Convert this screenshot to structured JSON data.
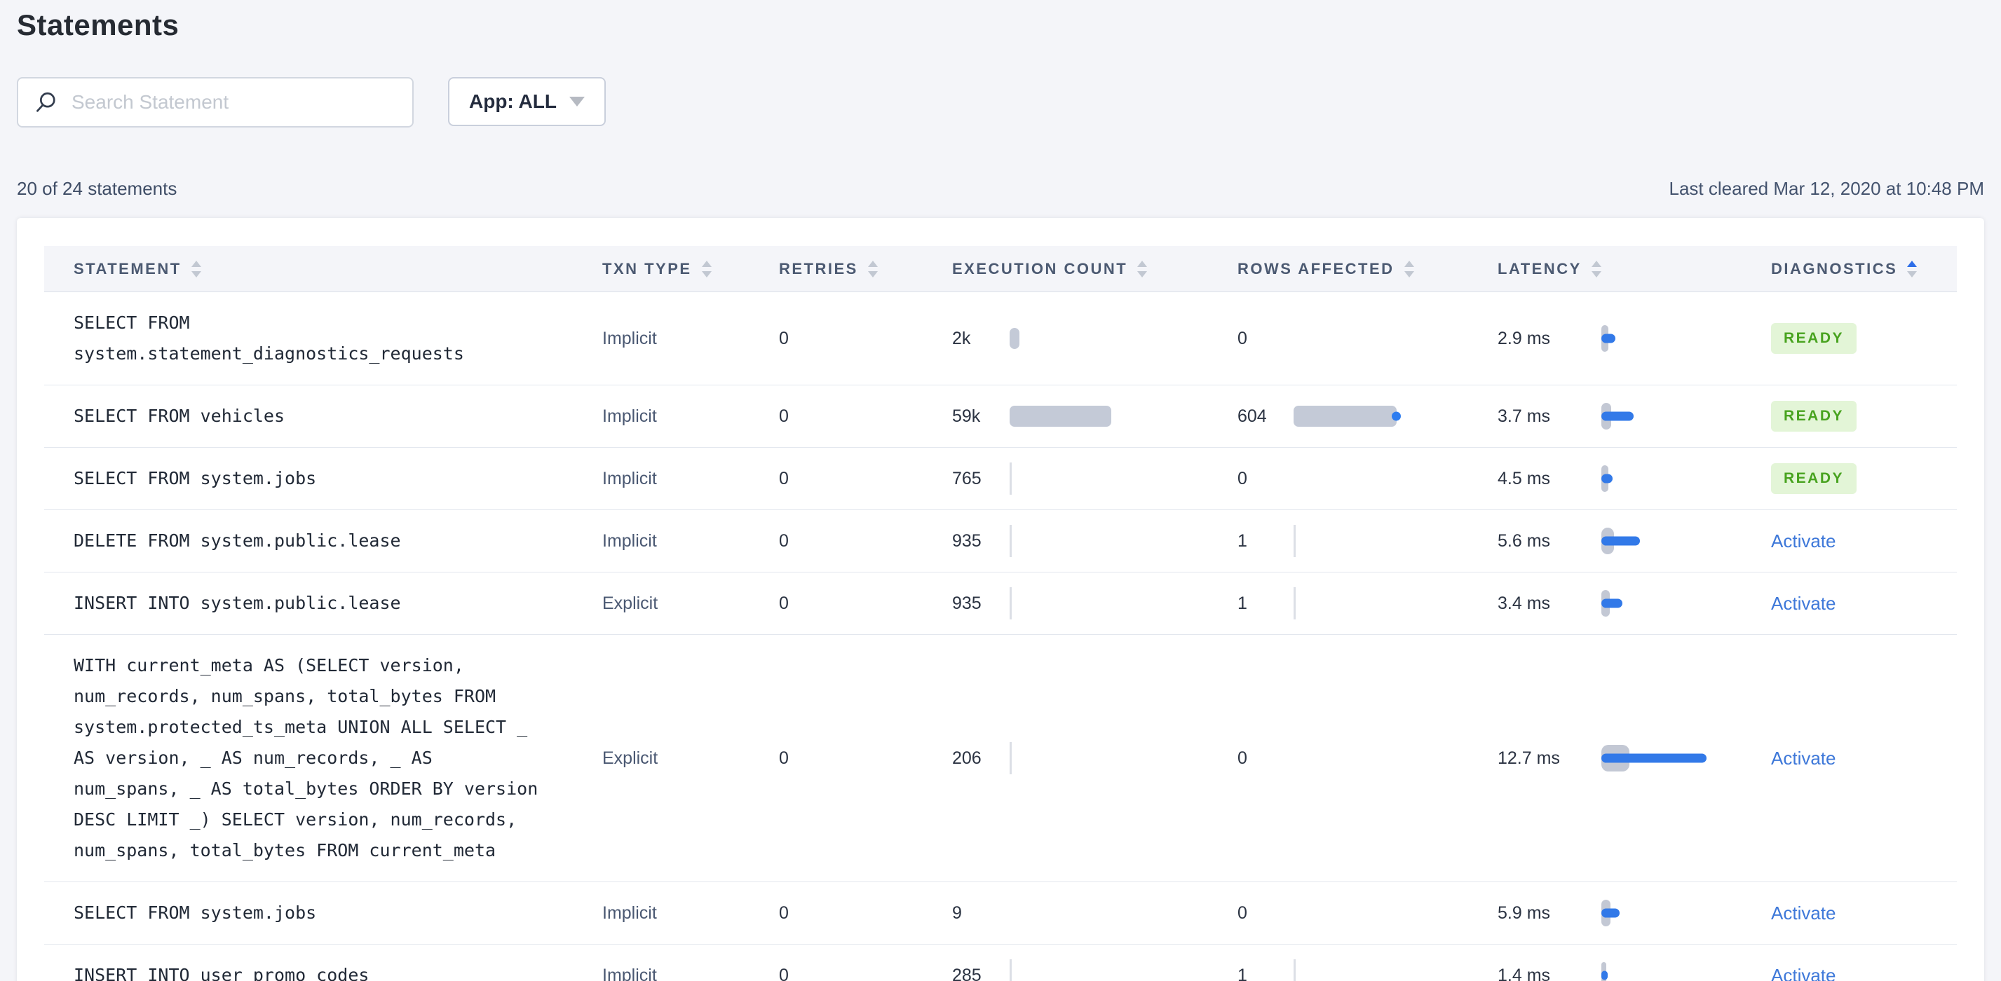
{
  "colors": {
    "accent_blue": "#3279e8",
    "link_blue": "#3e78d9",
    "bar_gray": "#c4cad7",
    "latency_gray": "#c3c8d4",
    "badge_green_bg": "#e3f5d7",
    "badge_green_text": "#48a31f",
    "active_sort_arrow": "#2e6ee8"
  },
  "page": {
    "title": "Statements",
    "search_placeholder": "Search Statement",
    "app_filter_label": "App: ALL",
    "summary": "20 of 24 statements",
    "last_cleared": "Last cleared Mar 12, 2020 at 10:48 PM"
  },
  "table": {
    "columns": [
      {
        "label": "STATEMENT",
        "sort": "none"
      },
      {
        "label": "TXN TYPE",
        "sort": "none"
      },
      {
        "label": "RETRIES",
        "sort": "none"
      },
      {
        "label": "EXECUTION COUNT",
        "sort": "none"
      },
      {
        "label": "ROWS AFFECTED",
        "sort": "none"
      },
      {
        "label": "LATENCY",
        "sort": "none"
      },
      {
        "label": "DIAGNOSTICS",
        "sort": "asc"
      }
    ],
    "rows": [
      {
        "statement": "SELECT FROM system.statement_diagnostics_requests",
        "txn_type": "Implicit",
        "retries": "0",
        "execution_count": "2k",
        "exec_bar": {
          "style": "bar",
          "width": 14,
          "dot": false
        },
        "rows_affected": "0",
        "rows_bar": {
          "style": "none",
          "width": 0,
          "dot": false
        },
        "latency": "2.9 ms",
        "latency_bar": {
          "gray": 10,
          "blue": 20
        },
        "diagnostics": {
          "type": "badge",
          "label": "READY"
        }
      },
      {
        "statement": "SELECT FROM vehicles",
        "txn_type": "Implicit",
        "retries": "0",
        "execution_count": "59k",
        "exec_bar": {
          "style": "bar",
          "width": 145,
          "dot": false
        },
        "rows_affected": "604",
        "rows_bar": {
          "style": "bar",
          "width": 147,
          "dot": true
        },
        "latency": "3.7 ms",
        "latency_bar": {
          "gray": 14,
          "blue": 46
        },
        "diagnostics": {
          "type": "badge",
          "label": "READY"
        }
      },
      {
        "statement": "SELECT FROM system.jobs",
        "txn_type": "Implicit",
        "retries": "0",
        "execution_count": "765",
        "exec_bar": {
          "style": "line",
          "width": 3,
          "dot": false
        },
        "rows_affected": "0",
        "rows_bar": {
          "style": "none",
          "width": 0,
          "dot": false
        },
        "latency": "4.5 ms",
        "latency_bar": {
          "gray": 10,
          "blue": 16
        },
        "diagnostics": {
          "type": "badge",
          "label": "READY"
        }
      },
      {
        "statement": "DELETE FROM system.public.lease",
        "txn_type": "Implicit",
        "retries": "0",
        "execution_count": "935",
        "exec_bar": {
          "style": "line",
          "width": 3,
          "dot": false
        },
        "rows_affected": "1",
        "rows_bar": {
          "style": "line",
          "width": 3,
          "dot": false
        },
        "latency": "5.6 ms",
        "latency_bar": {
          "gray": 18,
          "blue": 55
        },
        "diagnostics": {
          "type": "link",
          "label": "Activate"
        }
      },
      {
        "statement": "INSERT INTO system.public.lease",
        "txn_type": "Explicit",
        "retries": "0",
        "execution_count": "935",
        "exec_bar": {
          "style": "line",
          "width": 3,
          "dot": false
        },
        "rows_affected": "1",
        "rows_bar": {
          "style": "line",
          "width": 3,
          "dot": false
        },
        "latency": "3.4 ms",
        "latency_bar": {
          "gray": 12,
          "blue": 30
        },
        "diagnostics": {
          "type": "link",
          "label": "Activate"
        }
      },
      {
        "statement": "WITH current_meta AS (SELECT version, num_records, num_spans, total_bytes FROM system.protected_ts_meta UNION ALL SELECT _ AS version, _ AS num_records, _ AS num_spans, _ AS total_bytes ORDER BY version DESC LIMIT _) SELECT version, num_records, num_spans, total_bytes FROM current_meta",
        "txn_type": "Explicit",
        "retries": "0",
        "execution_count": "206",
        "exec_bar": {
          "style": "line",
          "width": 3,
          "dot": false
        },
        "rows_affected": "0",
        "rows_bar": {
          "style": "none",
          "width": 0,
          "dot": false
        },
        "latency": "12.7 ms",
        "latency_bar": {
          "gray": 40,
          "blue": 150
        },
        "diagnostics": {
          "type": "link",
          "label": "Activate"
        }
      },
      {
        "statement": "SELECT FROM system.jobs",
        "txn_type": "Implicit",
        "retries": "0",
        "execution_count": "9",
        "exec_bar": {
          "style": "none",
          "width": 0,
          "dot": false
        },
        "rows_affected": "0",
        "rows_bar": {
          "style": "none",
          "width": 0,
          "dot": false
        },
        "latency": "5.9 ms",
        "latency_bar": {
          "gray": 13,
          "blue": 26
        },
        "diagnostics": {
          "type": "link",
          "label": "Activate"
        }
      },
      {
        "statement": "INSERT INTO user_promo_codes",
        "txn_type": "Implicit",
        "retries": "0",
        "execution_count": "285",
        "exec_bar": {
          "style": "line",
          "width": 3,
          "dot": false
        },
        "rows_affected": "1",
        "rows_bar": {
          "style": "line",
          "width": 3,
          "dot": false
        },
        "latency": "1.4 ms",
        "latency_bar": {
          "gray": 7,
          "blue": 9
        },
        "diagnostics": {
          "type": "link",
          "label": "Activate"
        }
      }
    ]
  }
}
